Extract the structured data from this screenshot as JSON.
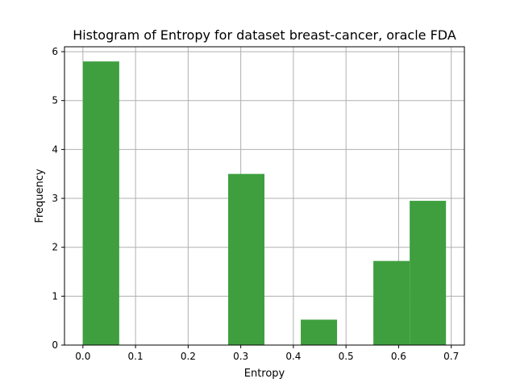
{
  "chart_data": {
    "type": "bar",
    "title": "Histogram of Entropy for dataset breast-cancer, oracle FDA",
    "xlabel": "Entropy",
    "ylabel": "Frequency",
    "xlim": [
      -0.035,
      0.725
    ],
    "ylim": [
      0,
      6.1
    ],
    "xticks": [
      "0.0",
      "0.1",
      "0.2",
      "0.3",
      "0.4",
      "0.5",
      "0.6",
      "0.7"
    ],
    "yticks": [
      "0",
      "1",
      "2",
      "3",
      "4",
      "5",
      "6"
    ],
    "grid": true,
    "bar_color": "#3f9f3f",
    "bins": [
      {
        "start": 0.0,
        "end": 0.069,
        "value": 5.8
      },
      {
        "start": 0.069,
        "end": 0.138,
        "value": 0
      },
      {
        "start": 0.138,
        "end": 0.207,
        "value": 0
      },
      {
        "start": 0.207,
        "end": 0.276,
        "value": 0
      },
      {
        "start": 0.276,
        "end": 0.345,
        "value": 3.5
      },
      {
        "start": 0.345,
        "end": 0.414,
        "value": 0
      },
      {
        "start": 0.414,
        "end": 0.483,
        "value": 0.52
      },
      {
        "start": 0.483,
        "end": 0.552,
        "value": 0
      },
      {
        "start": 0.552,
        "end": 0.621,
        "value": 1.72
      },
      {
        "start": 0.621,
        "end": 0.69,
        "value": 2.95
      }
    ]
  }
}
